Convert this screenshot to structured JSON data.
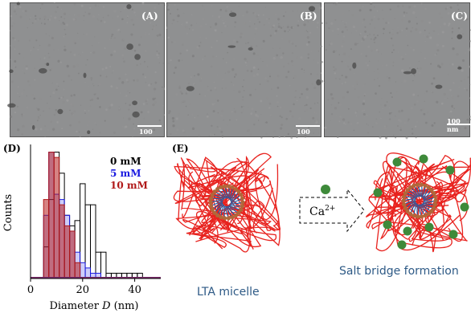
{
  "panels": {
    "tem_a": {
      "label": "(A)",
      "scale_text": "100 nm"
    },
    "tem_b": {
      "label": "(B)",
      "scale_text": "100 nm"
    },
    "tem_c": {
      "label": "(C)",
      "scale_text": "100 nm"
    },
    "d_label": "(D)",
    "e_label": "(E)"
  },
  "schematic": {
    "left_caption": "LTA micelle",
    "right_caption": "Salt bridge formation",
    "ion_label": "Ca",
    "ion_charge": "2+",
    "colors": {
      "polymer": "#e8231f",
      "headgroup": "#b0683a",
      "tail": "#1f5fa8",
      "ion": "#3e8a3a",
      "caption": "#2e5a86"
    }
  },
  "chart_data": {
    "type": "bar",
    "xlabel": "Diameter D (nm)",
    "ylabel": "Counts",
    "xlim": [
      0,
      50
    ],
    "xticks": [
      0,
      20,
      40
    ],
    "bin_width": 2,
    "legend_position": "top-right",
    "series": [
      {
        "name": "0 mM",
        "color": "#000000",
        "x": [
          6,
          8,
          10,
          12,
          14,
          16,
          18,
          20,
          22,
          24,
          26,
          28,
          30,
          32,
          34,
          36,
          38,
          40,
          42
        ],
        "values": [
          6,
          15,
          24,
          20,
          12,
          10,
          11,
          18,
          14,
          14,
          5,
          5,
          1,
          1,
          1,
          1,
          1,
          1,
          1
        ]
      },
      {
        "name": "5 mM",
        "color": "#1a1ae0",
        "x": [
          6,
          8,
          10,
          12,
          14,
          16,
          18,
          20,
          22,
          24,
          26
        ],
        "values": [
          12,
          24,
          16,
          15,
          12,
          9,
          5,
          3,
          2,
          1,
          1
        ]
      },
      {
        "name": "10 mM",
        "color": "#b01818",
        "x": [
          6,
          8,
          10,
          12,
          14,
          16,
          18
        ],
        "values": [
          15,
          24,
          23,
          14,
          10,
          9,
          3
        ]
      }
    ]
  }
}
